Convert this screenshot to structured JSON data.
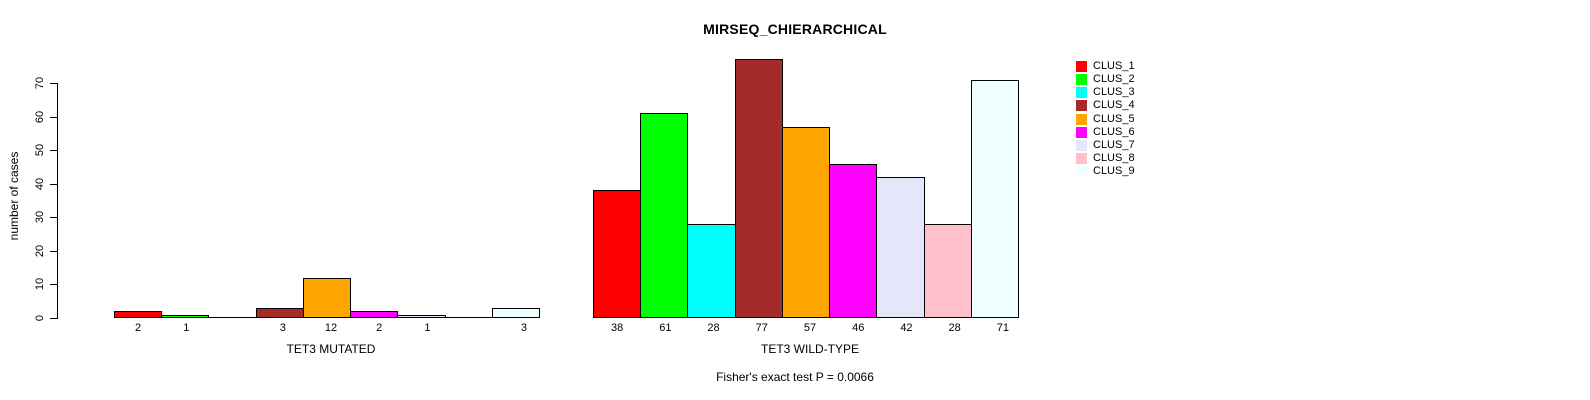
{
  "chart_data": {
    "type": "bar",
    "title": "MIRSEQ_CHIERARCHICAL",
    "ylabel": "number of cases",
    "xlabel": "",
    "yticks": [
      0,
      10,
      20,
      30,
      40,
      50,
      60,
      70
    ],
    "ylim": [
      0,
      77
    ],
    "grid": false,
    "legend_position": "right",
    "bar_value_labels_shown": true,
    "categories": [
      "CLUS_1",
      "CLUS_2",
      "CLUS_3",
      "CLUS_4",
      "CLUS_5",
      "CLUS_6",
      "CLUS_7",
      "CLUS_8",
      "CLUS_9"
    ],
    "colors": [
      "#FF0000",
      "#00FF00",
      "#00FFFF",
      "#A52A2A",
      "#FFA500",
      "#FF00FF",
      "#E6E6FA",
      "#FFC0CB",
      "#F0FFFF"
    ],
    "bar_border_color": "#000000",
    "groups": [
      {
        "label": "TET3 MUTATED",
        "values": [
          2,
          1,
          0,
          3,
          12,
          2,
          1,
          0,
          3
        ]
      },
      {
        "label": "TET3 WILD-TYPE",
        "values": [
          38,
          61,
          28,
          77,
          57,
          46,
          42,
          28,
          71
        ]
      }
    ],
    "annotation": "Fisher's exact test P = 0.0066"
  }
}
